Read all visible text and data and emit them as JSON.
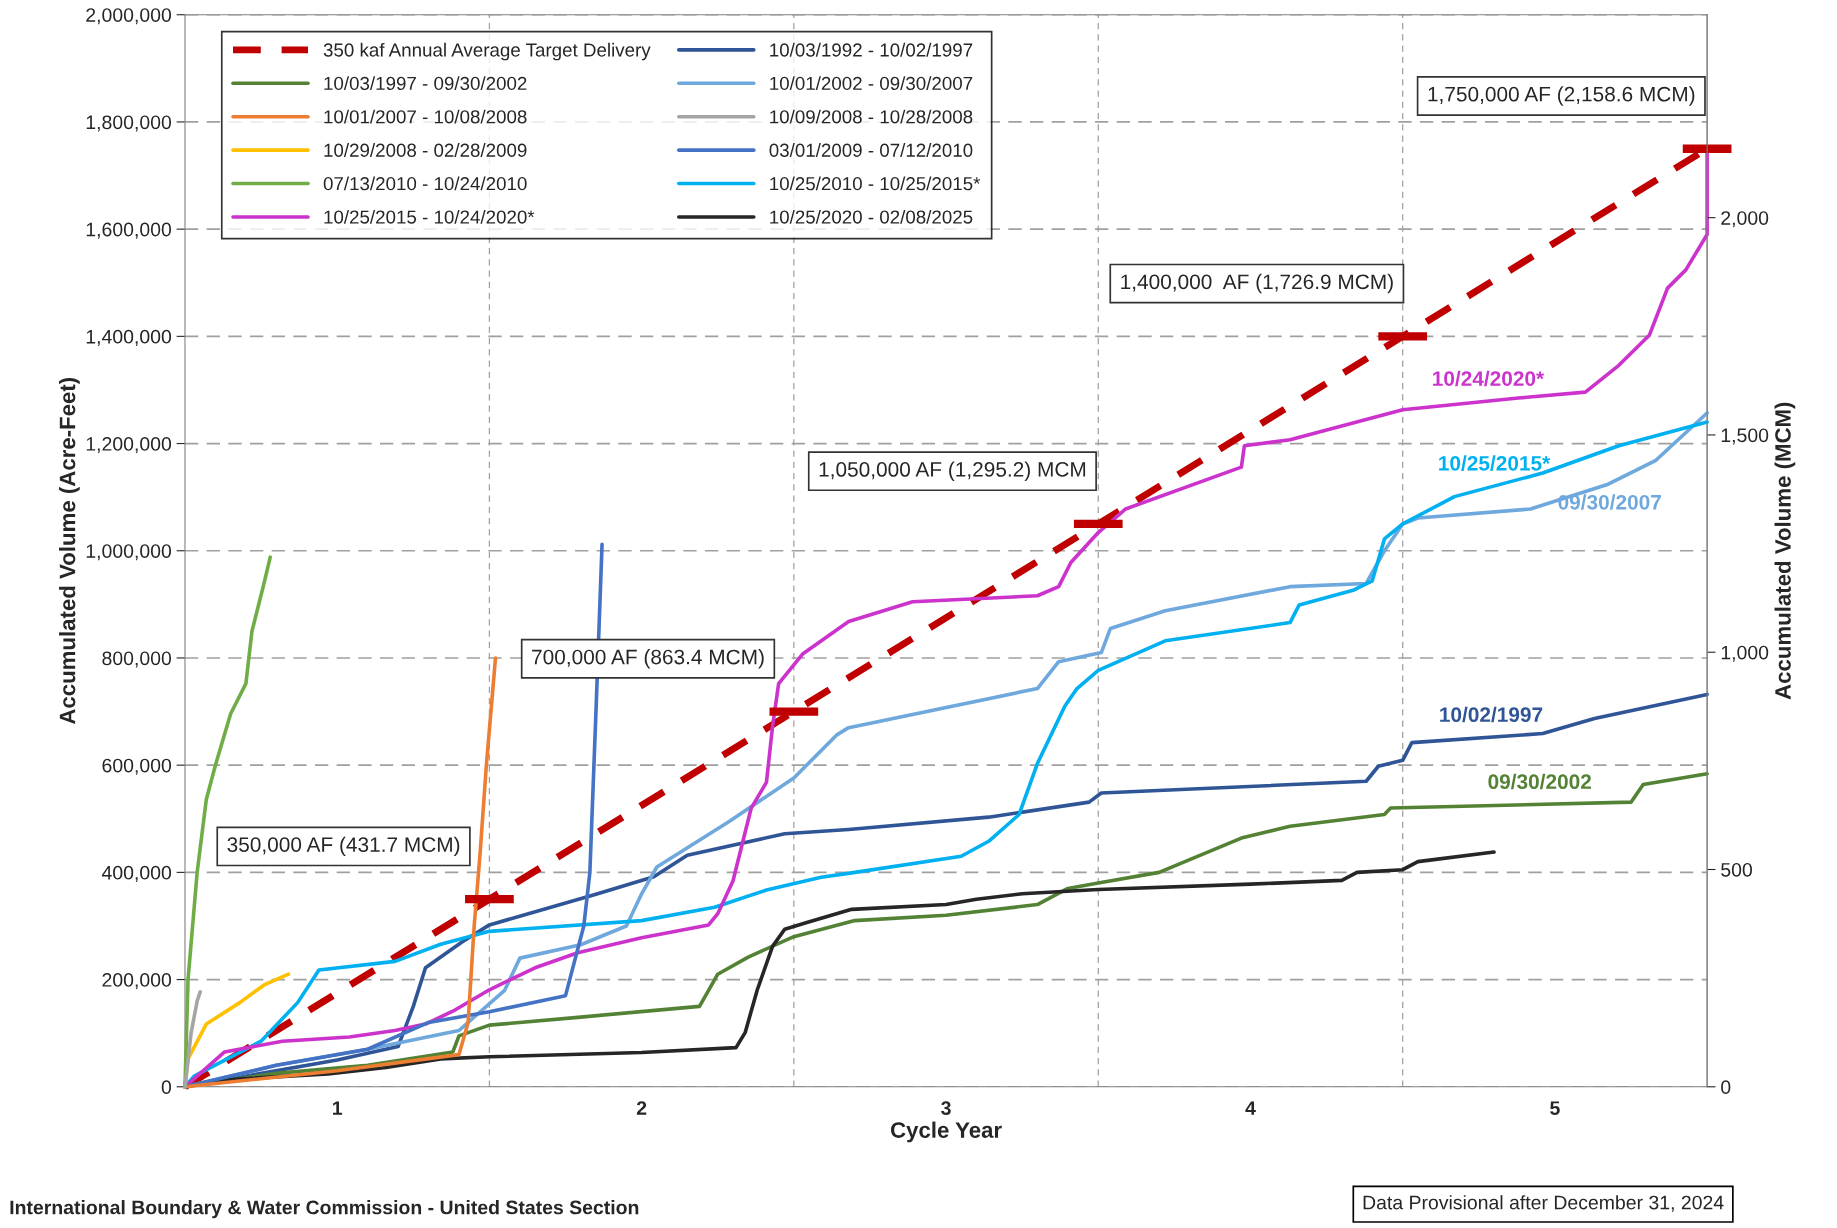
{
  "chart_data": {
    "type": "line",
    "xlabel": "Cycle Year",
    "ylabel": "Accumulated Volume (Acre-Feet)",
    "y2label": "Accumulated Volume (MCM)",
    "xlim": [
      0,
      5
    ],
    "xticks": [
      {
        "value": 0.5,
        "label": "1"
      },
      {
        "value": 1,
        "label": null
      },
      {
        "value": 1.5,
        "label": "2"
      },
      {
        "value": 2,
        "label": null
      },
      {
        "value": 2.5,
        "label": "3"
      },
      {
        "value": 3,
        "label": null
      },
      {
        "value": 3.5,
        "label": "4"
      },
      {
        "value": 4,
        "label": null
      },
      {
        "value": 4.5,
        "label": "5"
      }
    ],
    "ylim": [
      0,
      2000000
    ],
    "yticks": [
      {
        "value": 0,
        "label": "0"
      },
      {
        "value": 200000,
        "label": "200,000"
      },
      {
        "value": 400000,
        "label": "400,000"
      },
      {
        "value": 600000,
        "label": "600,000"
      },
      {
        "value": 800000,
        "label": "800,000"
      },
      {
        "value": 1000000,
        "label": "1,000,000"
      },
      {
        "value": 1200000,
        "label": "1,200,000"
      },
      {
        "value": 1400000,
        "label": "1,400,000"
      },
      {
        "value": 1600000,
        "label": "1,600,000"
      },
      {
        "value": 1800000,
        "label": "1,800,000"
      },
      {
        "value": 2000000,
        "label": "2,000,000"
      }
    ],
    "y2lim": [
      0,
      2467
    ],
    "y2ticks": [
      {
        "value": 0,
        "label": "0"
      },
      {
        "value": 500,
        "label": "500"
      },
      {
        "value": 1000,
        "label": "1,000"
      },
      {
        "value": 1500,
        "label": "1,500"
      },
      {
        "value": 2000,
        "label": "2,000"
      }
    ],
    "grid": true,
    "legend": "top left",
    "series": [
      {
        "name": "350 kaf Annual Average Target Delivery",
        "color": "#c00000",
        "line_style": "dashed",
        "x": [
          0,
          1,
          2,
          3,
          4,
          5
        ],
        "values": [
          0,
          350000,
          700000,
          1050000,
          1400000,
          1750000
        ],
        "xerrors": [
          null,
          0.08,
          0.08,
          0.08,
          0.08,
          0.08
        ]
      },
      {
        "name": "10/03/1992 - 10/02/1997",
        "color": "#2f5597",
        "x": [
          0,
          0.1,
          0.5,
          0.7,
          0.75,
          0.79,
          0.91,
          1.0,
          1.35,
          1.54,
          1.65,
          1.97,
          2.18,
          2.64,
          2.97,
          3.01,
          3.88,
          3.92,
          4.0,
          4.03,
          4.46,
          4.63,
          5.0
        ],
        "values": [
          0,
          10000,
          50000,
          75000,
          150000,
          222000,
          270000,
          302000,
          359000,
          392000,
          432000,
          472000,
          480000,
          503000,
          531000,
          548000,
          570000,
          598000,
          609000,
          642000,
          659000,
          687000,
          732000
        ]
      },
      {
        "name": "10/03/1997 - 09/30/2002",
        "color": "#548235",
        "x": [
          0,
          0.3,
          0.6,
          0.88,
          0.9,
          1.0,
          1.3,
          1.69,
          1.72,
          1.75,
          1.85,
          2.0,
          2.2,
          2.5,
          2.8,
          2.9,
          3.0,
          3.2,
          3.47,
          3.63,
          3.94,
          3.96,
          4.75,
          4.79,
          5.0
        ],
        "values": [
          0,
          25000,
          40000,
          65000,
          95000,
          115000,
          130000,
          150000,
          180000,
          210000,
          242000,
          280000,
          310000,
          320000,
          340000,
          370000,
          380000,
          400000,
          464000,
          486000,
          508000,
          520000,
          531000,
          564000,
          584000
        ]
      },
      {
        "name": "10/01/2002 - 09/30/2007",
        "color": "#6fa8dc",
        "x": [
          0,
          0.3,
          0.6,
          0.9,
          1.05,
          1.1,
          1.3,
          1.45,
          1.5,
          1.55,
          1.79,
          2.0,
          2.14,
          2.18,
          2.8,
          2.87,
          3.01,
          3.04,
          3.22,
          3.63,
          3.88,
          3.94,
          4.0,
          4.05,
          4.42,
          4.67,
          4.83,
          5.0
        ],
        "values": [
          0,
          40000,
          70000,
          105000,
          180000,
          240000,
          265000,
          300000,
          360000,
          410000,
          496000,
          576000,
          656000,
          670000,
          743000,
          793000,
          810000,
          855000,
          888000,
          933000,
          939000,
          1000000,
          1050000,
          1061000,
          1078000,
          1123000,
          1168000,
          1257000
        ]
      },
      {
        "name": "10/01/2007 - 10/08/2008",
        "color": "#ed7d31",
        "x": [
          0,
          0.5,
          0.9,
          0.93,
          0.95,
          0.97,
          0.99,
          1.02
        ],
        "values": [
          0,
          30000,
          60000,
          120000,
          300000,
          440000,
          600000,
          800000
        ]
      },
      {
        "name": "10/09/2008 - 10/28/2008",
        "color": "#a5a5a5",
        "x": [
          0,
          0.02,
          0.04,
          0.05
        ],
        "values": [
          0,
          100000,
          160000,
          177000
        ]
      },
      {
        "name": "10/29/2008 - 02/28/2009",
        "color": "#ffc000",
        "x": [
          0,
          0.01,
          0.07,
          0.18,
          0.26,
          0.34
        ],
        "values": [
          0,
          52000,
          117000,
          157000,
          190000,
          210000
        ]
      },
      {
        "name": "03/01/2009 - 07/12/2010",
        "color": "#4472c4",
        "x": [
          0,
          0.3,
          0.6,
          0.8,
          1.0,
          1.25,
          1.31,
          1.33,
          1.35,
          1.37
        ],
        "values": [
          0,
          40000,
          70000,
          120000,
          140000,
          170000,
          300000,
          400000,
          700000,
          1012000
        ]
      },
      {
        "name": "07/13/2010 - 10/24/2010",
        "color": "#70ad47",
        "x": [
          0,
          0.01,
          0.04,
          0.07,
          0.1,
          0.15,
          0.2,
          0.22,
          0.26,
          0.28
        ],
        "values": [
          0,
          200000,
          400000,
          536000,
          600000,
          696000,
          752000,
          850000,
          940000,
          988000
        ]
      },
      {
        "name": "10/25/2010 - 10/25/2015*",
        "color": "#00b0f0",
        "x": [
          0,
          0.03,
          0.25,
          0.37,
          0.44,
          0.69,
          0.84,
          1.0,
          1.5,
          1.74,
          1.91,
          2.09,
          2.19,
          2.55,
          2.64,
          2.74,
          2.8,
          2.89,
          2.93,
          3.0,
          3.22,
          3.63,
          3.66,
          3.84,
          3.9,
          3.94,
          4.0,
          4.17,
          4.46,
          4.71,
          5.0
        ],
        "values": [
          0,
          20000,
          85000,
          157000,
          218000,
          234000,
          266000,
          290000,
          310000,
          335000,
          367000,
          391000,
          399000,
          430000,
          458000,
          508000,
          603000,
          710000,
          743000,
          777000,
          832000,
          866000,
          899000,
          927000,
          944000,
          1022000,
          1050000,
          1101000,
          1145000,
          1196000,
          1240000
        ]
      },
      {
        "name": "10/25/2015 - 10/24/2020*",
        "color": "#cc33cc",
        "x": [
          0,
          0.13,
          0.32,
          0.54,
          0.69,
          0.79,
          0.88,
          1.0,
          1.15,
          1.29,
          1.5,
          1.72,
          1.75,
          1.8,
          1.86,
          1.91,
          1.93,
          1.95,
          2.03,
          2.18,
          2.39,
          2.8,
          2.87,
          2.91,
          3.0,
          3.09,
          3.47,
          3.48,
          3.63,
          4.0,
          4.38,
          4.6,
          4.71,
          4.81,
          4.87,
          4.93,
          5.0,
          5.0
        ],
        "values": [
          0,
          65000,
          85000,
          93000,
          105000,
          117000,
          141000,
          181000,
          222000,
          250000,
          278000,
          302000,
          323000,
          384000,
          520000,
          568000,
          672000,
          752000,
          808000,
          868000,
          905000,
          916000,
          933000,
          978000,
          1034000,
          1078000,
          1156000,
          1196000,
          1207000,
          1263000,
          1285000,
          1296000,
          1346000,
          1402000,
          1490000,
          1524000,
          1590000,
          1750000
        ]
      },
      {
        "name": "10/25/2020 - 02/08/2025",
        "color": "#262626",
        "x": [
          0,
          0.1,
          0.47,
          0.66,
          0.84,
          1.0,
          1.5,
          1.81,
          1.84,
          1.88,
          1.93,
          1.97,
          2.04,
          2.19,
          2.5,
          2.6,
          2.75,
          3.0,
          3.5,
          3.8,
          3.85,
          4.0,
          4.05,
          4.3
        ],
        "values": [
          0,
          12000,
          24000,
          36000,
          52000,
          56000,
          64000,
          73000,
          101000,
          181000,
          262000,
          294000,
          306000,
          331000,
          340000,
          350000,
          360000,
          368000,
          378000,
          385000,
          400000,
          405000,
          420000,
          438000
        ]
      }
    ],
    "annotations": [
      {
        "text": "350,000 AF (431.7 MCM)",
        "x": 1,
        "y": 350000
      },
      {
        "text": "700,000 AF (863.4 MCM)",
        "x": 2,
        "y": 700000
      },
      {
        "text": "1,050,000 AF (1,295.2) MCM",
        "x": 3,
        "y": 1050000
      },
      {
        "text": "1,400,000  AF (1,726.9 MCM)",
        "x": 4,
        "y": 1400000
      },
      {
        "text": "1,750,000 AF (2,158.6 MCM)",
        "x": 5,
        "y": 1750000
      },
      {
        "text": "10/24/2020*",
        "x": 4.28,
        "y": 1279000
      },
      {
        "text": "10/25/2015*",
        "x": 4.3,
        "y": 1121000
      },
      {
        "text": "09/30/2007",
        "x": 4.68,
        "y": 1126000
      },
      {
        "text": "10/02/1997",
        "x": 4.29,
        "y": 652000
      },
      {
        "text": "09/30/2002",
        "x": 4.45,
        "y": 527000
      },
      "International Boundary & Water Commission - United States Section",
      "Data Provisional after December 31, 2024"
    ]
  }
}
